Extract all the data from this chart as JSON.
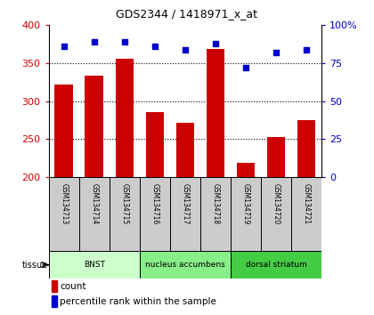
{
  "title": "GDS2344 / 1418971_x_at",
  "samples": [
    "GSM134713",
    "GSM134714",
    "GSM134715",
    "GSM134716",
    "GSM134717",
    "GSM134718",
    "GSM134719",
    "GSM134720",
    "GSM134721"
  ],
  "counts": [
    322,
    333,
    356,
    286,
    271,
    369,
    219,
    253,
    275
  ],
  "percentiles": [
    86,
    89,
    89,
    86,
    84,
    88,
    72,
    82,
    84
  ],
  "ylim_left": [
    200,
    400
  ],
  "ylim_right": [
    0,
    100
  ],
  "yticks_left": [
    200,
    250,
    300,
    350,
    400
  ],
  "yticks_right": [
    0,
    25,
    50,
    75,
    100
  ],
  "bar_color": "#cc0000",
  "dot_color": "#0000cc",
  "groups": [
    {
      "label": "BNST",
      "start": 0,
      "end": 3,
      "color": "#ccffcc"
    },
    {
      "label": "nucleus accumbens",
      "start": 3,
      "end": 6,
      "color": "#88ee88"
    },
    {
      "label": "dorsal striatum",
      "start": 6,
      "end": 9,
      "color": "#44cc44"
    }
  ],
  "tissue_label": "tissue",
  "legend_count_label": "count",
  "legend_pct_label": "percentile rank within the sample",
  "grid_color": "#000000",
  "bg_color": "#ffffff",
  "tick_label_color_left": "#cc0000",
  "tick_label_color_right": "#0000cc",
  "sample_bg_color": "#cccccc",
  "ytick_right_labels": [
    "0",
    "25",
    "50",
    "75",
    "100%"
  ]
}
